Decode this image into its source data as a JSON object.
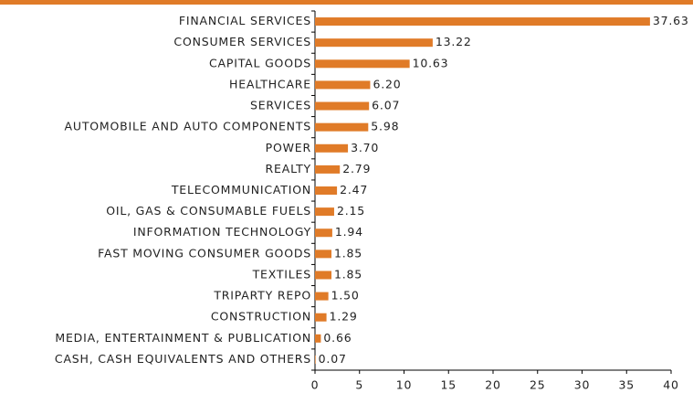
{
  "chart_data": {
    "type": "bar",
    "orientation": "horizontal",
    "categories": [
      "FINANCIAL SERVICES",
      "CONSUMER SERVICES",
      "CAPITAL GOODS",
      "HEALTHCARE",
      "SERVICES",
      "AUTOMOBILE AND AUTO COMPONENTS",
      "POWER",
      "REALTY",
      "TELECOMMUNICATION",
      "OIL, GAS & CONSUMABLE FUELS",
      "INFORMATION TECHNOLOGY",
      "FAST MOVING CONSUMER GOODS",
      "TEXTILES",
      "TRIPARTY REPO",
      "CONSTRUCTION",
      "MEDIA, ENTERTAINMENT & PUBLICATION",
      "CASH, CASH EQUIVALENTS AND OTHERS"
    ],
    "values": [
      37.63,
      13.22,
      10.63,
      6.2,
      6.07,
      5.98,
      3.7,
      2.79,
      2.47,
      2.15,
      1.94,
      1.85,
      1.85,
      1.5,
      1.29,
      0.66,
      0.07
    ],
    "value_labels": [
      "37.63",
      "13.22",
      "10.63",
      "6.20",
      "6.07",
      "5.98",
      "3.70",
      "2.79",
      "2.47",
      "2.15",
      "1.94",
      "1.85",
      "1.85",
      "1.50",
      "1.29",
      "0.66",
      "0.07"
    ],
    "color": "#e07b28",
    "xlim": [
      0,
      40
    ],
    "xticks": [
      0,
      5,
      10,
      15,
      20,
      25,
      30,
      35,
      40
    ]
  }
}
